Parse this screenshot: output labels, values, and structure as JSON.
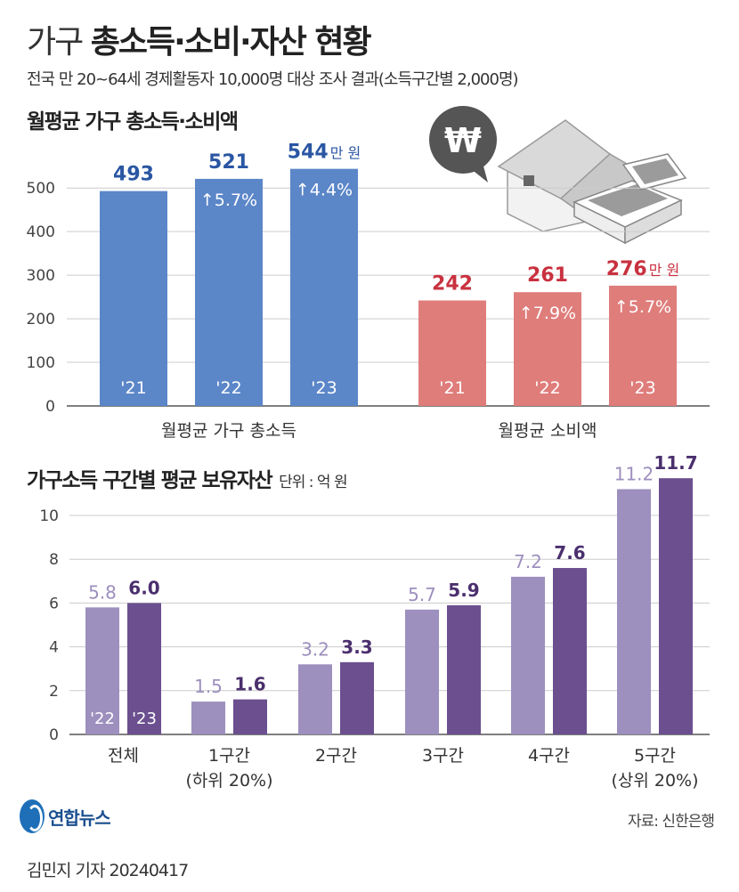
{
  "header": {
    "title_light": "가구",
    "title_bold": "총소득·소비·자산 현황",
    "subtitle": "전국 만 20~64세 경제활동자 10,000명 대상 조사 결과(소득구간별 2,000명)"
  },
  "section1": {
    "title": "월평균 가구 총소득·소비액"
  },
  "section2": {
    "title": "가구소득 구간별 평균 보유자산",
    "unit": "단위 : 억 원"
  },
  "colors": {
    "income": "#5b86c8",
    "income_label": "#2a56a3",
    "spending": "#df7d7b",
    "spending_label": "#c9313f",
    "asset22": "#9d8fbe",
    "asset23": "#6b4f8f",
    "asset22_label": "#9d8fbe",
    "asset23_label": "#4b2f6e"
  },
  "chart_data": [
    {
      "type": "bar",
      "title": "월평균 가구 총소득·소비액",
      "ylim": [
        0,
        550
      ],
      "yticks": [
        0,
        100,
        200,
        300,
        400,
        500
      ],
      "grid": true,
      "groups": [
        {
          "name": "월평균 가구 총소득",
          "categories": [
            "'21",
            "'22",
            "'23"
          ],
          "values": [
            493,
            521,
            544
          ],
          "changes": [
            "",
            "↑5.7%",
            "↑4.4%"
          ],
          "unit_suffix": "만 원"
        },
        {
          "name": "월평균 소비액",
          "categories": [
            "'21",
            "'22",
            "'23"
          ],
          "values": [
            242,
            261,
            276
          ],
          "changes": [
            "",
            "↑7.9%",
            "↑5.7%"
          ],
          "unit_suffix": "만 원"
        }
      ]
    },
    {
      "type": "bar",
      "title": "가구소득 구간별 평균 보유자산",
      "ylim": [
        0,
        12
      ],
      "yticks": [
        0,
        2,
        4,
        6,
        8,
        10
      ],
      "grid": true,
      "categories": [
        "전체",
        "1구간",
        "2구간",
        "3구간",
        "4구간",
        "5구간"
      ],
      "category_sublabels": [
        "",
        "(하위 20%)",
        "",
        "",
        "",
        "(상위 20%)"
      ],
      "series": [
        {
          "name": "'22",
          "values": [
            5.8,
            1.5,
            3.2,
            5.7,
            7.2,
            11.2
          ]
        },
        {
          "name": "'23",
          "values": [
            6.0,
            1.6,
            3.3,
            5.9,
            7.6,
            11.7
          ]
        }
      ]
    }
  ],
  "footer": {
    "logo_text": "연합뉴스",
    "source": "자료: 신한은행",
    "credit": "김민지 기자  20240417"
  }
}
